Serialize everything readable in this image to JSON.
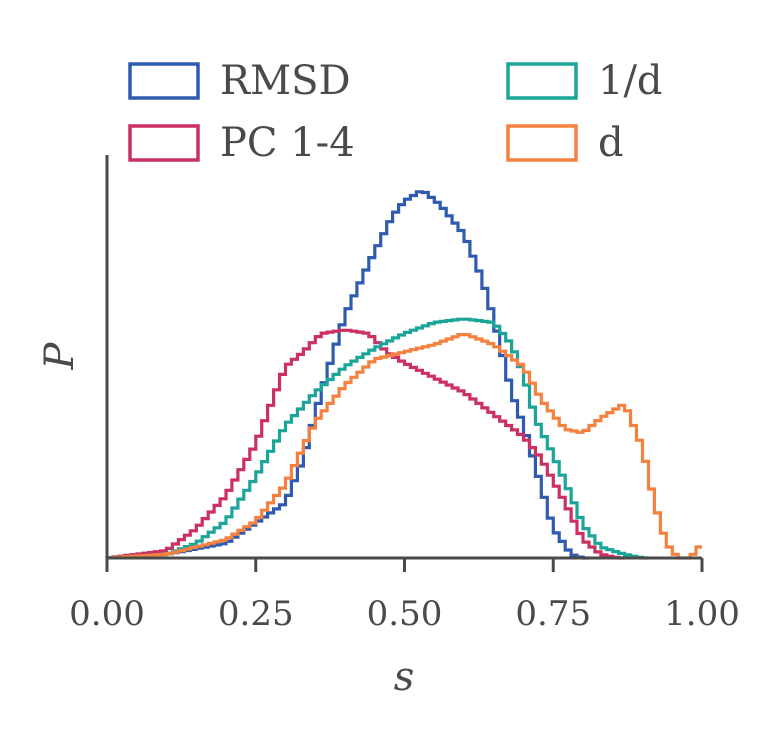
{
  "chart_data": {
    "type": "line",
    "subtype": "step-histogram",
    "title": "",
    "xlabel": "s",
    "ylabel": "P",
    "xlim": [
      0.0,
      1.0
    ],
    "ylim": [
      0.0,
      1.0
    ],
    "x_ticks": [
      "0.00",
      "0.25",
      "0.50",
      "0.75",
      "1.00"
    ],
    "y_ticks_shown": false,
    "grid": false,
    "legend": {
      "placement": "top",
      "columns": 2
    },
    "series": [
      {
        "name": "RMSD",
        "color": "#2e5ab0",
        "points": [
          [
            0,
            0
          ],
          [
            0.1,
            0.01
          ],
          [
            0.2,
            0.04
          ],
          [
            0.3,
            0.15
          ],
          [
            0.33,
            0.27
          ],
          [
            0.36,
            0.45
          ],
          [
            0.4,
            0.66
          ],
          [
            0.44,
            0.8
          ],
          [
            0.48,
            0.93
          ],
          [
            0.5,
            0.97
          ],
          [
            0.53,
            1.0
          ],
          [
            0.56,
            0.96
          ],
          [
            0.6,
            0.88
          ],
          [
            0.63,
            0.76
          ],
          [
            0.65,
            0.65
          ],
          [
            0.68,
            0.45
          ],
          [
            0.7,
            0.36
          ],
          [
            0.72,
            0.25
          ],
          [
            0.75,
            0.08
          ],
          [
            0.78,
            0.01
          ],
          [
            0.8,
            0
          ]
        ]
      },
      {
        "name": "PC 1-4",
        "color": "#cc2f62",
        "points": [
          [
            0,
            0
          ],
          [
            0.1,
            0.02
          ],
          [
            0.15,
            0.08
          ],
          [
            0.2,
            0.17
          ],
          [
            0.25,
            0.31
          ],
          [
            0.3,
            0.52
          ],
          [
            0.33,
            0.56
          ],
          [
            0.36,
            0.61
          ],
          [
            0.4,
            0.62
          ],
          [
            0.44,
            0.61
          ],
          [
            0.47,
            0.56
          ],
          [
            0.5,
            0.53
          ],
          [
            0.55,
            0.49
          ],
          [
            0.6,
            0.45
          ],
          [
            0.65,
            0.39
          ],
          [
            0.7,
            0.33
          ],
          [
            0.73,
            0.27
          ],
          [
            0.77,
            0.15
          ],
          [
            0.8,
            0.05
          ],
          [
            0.83,
            0.01
          ],
          [
            0.86,
            0
          ]
        ]
      },
      {
        "name": "1/d",
        "color": "#1aa598",
        "points": [
          [
            0,
            0
          ],
          [
            0.1,
            0.01
          ],
          [
            0.15,
            0.04
          ],
          [
            0.2,
            0.1
          ],
          [
            0.25,
            0.22
          ],
          [
            0.3,
            0.36
          ],
          [
            0.35,
            0.45
          ],
          [
            0.4,
            0.52
          ],
          [
            0.45,
            0.57
          ],
          [
            0.5,
            0.61
          ],
          [
            0.55,
            0.64
          ],
          [
            0.6,
            0.65
          ],
          [
            0.65,
            0.64
          ],
          [
            0.68,
            0.58
          ],
          [
            0.7,
            0.5
          ],
          [
            0.72,
            0.38
          ],
          [
            0.75,
            0.28
          ],
          [
            0.78,
            0.17
          ],
          [
            0.8,
            0.09
          ],
          [
            0.83,
            0.03
          ],
          [
            0.87,
            0.01
          ],
          [
            0.9,
            0
          ]
        ]
      },
      {
        "name": "d",
        "color": "#f4813f",
        "points": [
          [
            0,
            0
          ],
          [
            0.1,
            0.01
          ],
          [
            0.15,
            0.03
          ],
          [
            0.2,
            0.05
          ],
          [
            0.25,
            0.1
          ],
          [
            0.3,
            0.2
          ],
          [
            0.35,
            0.37
          ],
          [
            0.4,
            0.47
          ],
          [
            0.45,
            0.54
          ],
          [
            0.5,
            0.56
          ],
          [
            0.55,
            0.58
          ],
          [
            0.6,
            0.61
          ],
          [
            0.65,
            0.58
          ],
          [
            0.7,
            0.52
          ],
          [
            0.73,
            0.43
          ],
          [
            0.77,
            0.35
          ],
          [
            0.8,
            0.34
          ],
          [
            0.83,
            0.38
          ],
          [
            0.87,
            0.42
          ],
          [
            0.9,
            0.3
          ],
          [
            0.92,
            0.15
          ],
          [
            0.94,
            0.04
          ],
          [
            0.96,
            0
          ],
          [
            0.98,
            0
          ],
          [
            1.0,
            0.04
          ]
        ]
      }
    ]
  }
}
